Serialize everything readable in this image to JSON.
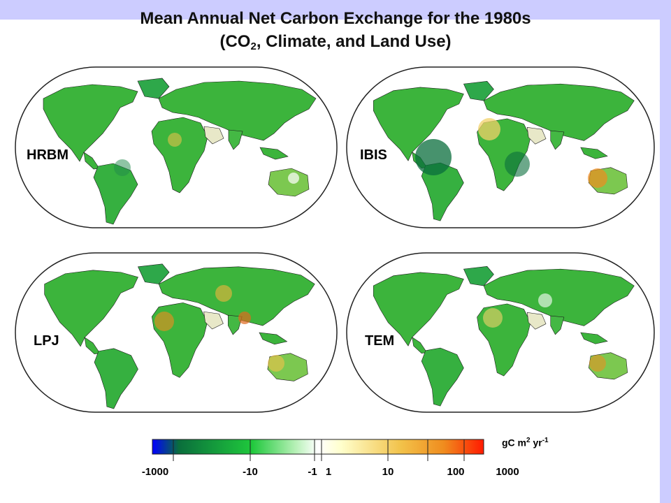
{
  "title": {
    "line1": "Mean Annual Net Carbon Exchange for the 1980s",
    "line2_pre": "(CO",
    "line2_sub": "2",
    "line2_post": ", Climate, and Land Use)"
  },
  "maps": [
    {
      "id": "hrbm",
      "label": "HRBM"
    },
    {
      "id": "ibis",
      "label": "IBIS"
    },
    {
      "id": "lpj",
      "label": "LPJ"
    },
    {
      "id": "tem",
      "label": "TEM"
    }
  ],
  "legend": {
    "ticks": [
      "-1000",
      "-10",
      "-1",
      "1",
      "10",
      "100",
      "1000"
    ],
    "units_text": "gC m",
    "units_sup1": "2",
    "units_mid": " yr",
    "units_sup2": "-1"
  },
  "colors": {
    "header_band": "#ccccff",
    "land_green": "#3cb43c",
    "source_orange": "#f08c1e",
    "sink_dark": "#0a6e3c"
  }
}
